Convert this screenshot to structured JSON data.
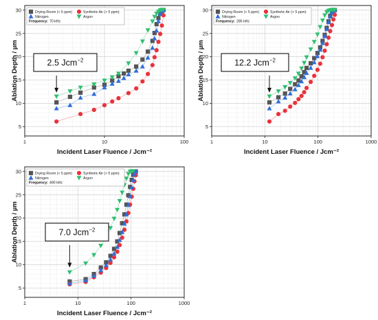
{
  "chart_data": [
    {
      "type": "scatter",
      "title": "",
      "xlabel": "Incident Laser Fluence / Jcm⁻²",
      "ylabel": "Ablation Depth / µm",
      "x_scale": "log",
      "xlim": [
        1,
        100
      ],
      "ylim": [
        3,
        31
      ],
      "x_ticks": [
        "1",
        "10",
        "100"
      ],
      "y_ticks": [
        "5",
        "10",
        "15",
        "20",
        "25",
        "30"
      ],
      "grid": true,
      "legend_position": "top-left",
      "frequency_label": "Frequency:",
      "frequency_value": "70 kHz",
      "callout": {
        "text": "2.5 Jcm",
        "superscript": "−2",
        "arrow_x": 2.5,
        "arrow_y": 12.3
      },
      "series": [
        {
          "name": "Drying Room (< 5 ppm)",
          "marker": "square",
          "color": "#555555",
          "x": [
            2.5,
            3.7,
            5.0,
            7.4,
            10.0,
            12.5,
            15.0,
            17.5,
            20.0,
            25.0,
            30.0,
            35.0,
            40.0,
            42.5,
            45.0,
            47.5,
            50.0,
            52.5,
            55.0
          ],
          "y": [
            10.2,
            11.4,
            12.3,
            13.4,
            14.0,
            14.9,
            15.8,
            16.4,
            17.0,
            17.9,
            19.4,
            21.1,
            23.4,
            25.1,
            27.0,
            28.3,
            29.2,
            29.8,
            30.0
          ]
        },
        {
          "name": "Synthetic Air (> 5 ppm)",
          "marker": "circle",
          "color": "#e8333c",
          "x": [
            2.5,
            5.0,
            7.4,
            10.0,
            12.5,
            15.0,
            20.0,
            25.0,
            30.0,
            35.0,
            40.0,
            42.5,
            45.0,
            47.5,
            50.0,
            52.5,
            55.0
          ],
          "y": [
            6.1,
            7.7,
            8.6,
            9.6,
            10.4,
            11.1,
            12.2,
            13.2,
            14.7,
            16.3,
            18.2,
            19.9,
            21.4,
            23.2,
            24.9,
            26.7,
            28.9
          ]
        },
        {
          "name": "Nitrogen",
          "marker": "triangle-up",
          "color": "#2f6fd6",
          "x": [
            2.5,
            3.7,
            5.0,
            7.4,
            10.0,
            12.5,
            15.0,
            17.5,
            20.0,
            25.0,
            30.0,
            35.0,
            40.0,
            42.5,
            45.0,
            47.5,
            50.0,
            52.5,
            55.0
          ],
          "y": [
            8.9,
            9.6,
            11.2,
            12.0,
            13.4,
            14.2,
            14.8,
            15.4,
            16.2,
            17.0,
            17.9,
            19.8,
            21.9,
            23.9,
            25.6,
            27.6,
            29.2,
            29.8,
            30.0
          ]
        },
        {
          "name": "Argon",
          "marker": "triangle-down",
          "color": "#2fbf71",
          "x": [
            2.5,
            3.7,
            5.0,
            7.4,
            10.0,
            12.5,
            15.0,
            20.0,
            25.0,
            30.0,
            35.0,
            40.0,
            42.5,
            45.0,
            47.5,
            50.0,
            52.5,
            55.0
          ],
          "y": [
            11.5,
            12.6,
            13.4,
            14.1,
            14.9,
            15.6,
            16.4,
            18.6,
            20.8,
            23.3,
            25.7,
            27.6,
            28.6,
            29.3,
            29.7,
            30.0,
            30.1,
            30.1
          ]
        }
      ]
    },
    {
      "type": "scatter",
      "title": "",
      "xlabel": "Incident Laser Fluence / Jcm⁻²",
      "ylabel": "Ablation Depth / µm",
      "x_scale": "log",
      "xlim": [
        1,
        1000
      ],
      "ylim": [
        3,
        31
      ],
      "x_ticks": [
        "1",
        "10",
        "100",
        "1000"
      ],
      "y_ticks": [
        "5",
        "10",
        "15",
        "20",
        "25",
        "30"
      ],
      "grid": true,
      "legend_position": "top-left",
      "frequency_label": "Frequency:",
      "frequency_value": "285 kHz",
      "callout": {
        "text": "12.2 Jcm",
        "superscript": "−2",
        "arrow_x": 12.2,
        "arrow_y": 12.3
      },
      "series": [
        {
          "name": "Drying Room (< 5 ppm)",
          "marker": "square",
          "color": "#555555",
          "x": [
            12.2,
            18,
            24,
            30,
            37,
            43,
            49,
            55,
            61,
            73,
            85,
            98,
            110,
            122,
            134,
            146,
            158,
            170,
            183,
            195,
            207
          ],
          "y": [
            10.2,
            11.3,
            12.1,
            13.1,
            14.1,
            14.9,
            15.8,
            16.7,
            17.6,
            18.6,
            19.7,
            20.8,
            22.0,
            23.4,
            24.7,
            26.2,
            27.6,
            28.8,
            29.6,
            29.9,
            30.0
          ]
        },
        {
          "name": "Synthetic Air (> 5 ppm)",
          "marker": "circle",
          "color": "#e8333c",
          "x": [
            12.2,
            18,
            24,
            30,
            37,
            43,
            49,
            55,
            61,
            73,
            85,
            98,
            110,
            122,
            134,
            146,
            158,
            170,
            183,
            195,
            207
          ],
          "y": [
            6.1,
            7.7,
            8.4,
            9.3,
            10.1,
            10.9,
            11.6,
            12.4,
            13.3,
            14.6,
            15.9,
            17.2,
            18.5,
            19.9,
            21.3,
            22.7,
            24.1,
            25.5,
            26.8,
            28.0,
            29.0
          ]
        },
        {
          "name": "Nitrogen",
          "marker": "triangle-up",
          "color": "#2f6fd6",
          "x": [
            12.2,
            18,
            24,
            30,
            37,
            43,
            49,
            55,
            61,
            73,
            85,
            98,
            110,
            122,
            134,
            146,
            158,
            170,
            183,
            195,
            207
          ],
          "y": [
            8.9,
            10.4,
            11.2,
            12.1,
            13.0,
            13.9,
            14.7,
            15.6,
            16.5,
            17.6,
            18.8,
            20.1,
            21.5,
            22.9,
            24.4,
            25.9,
            27.4,
            28.6,
            29.5,
            29.9,
            30.0
          ]
        },
        {
          "name": "Argon",
          "marker": "triangle-down",
          "color": "#2fbf71",
          "x": [
            12.2,
            18,
            24,
            30,
            37,
            43,
            49,
            55,
            61,
            73,
            85,
            98,
            110,
            122,
            134,
            146,
            158,
            170,
            183,
            195,
            207
          ],
          "y": [
            11.5,
            12.6,
            13.5,
            14.4,
            15.4,
            16.4,
            17.5,
            18.7,
            19.9,
            21.6,
            23.2,
            24.8,
            26.4,
            27.8,
            28.9,
            29.6,
            29.9,
            30.0,
            30.1,
            30.1,
            30.1
          ]
        }
      ]
    },
    {
      "type": "scatter",
      "title": "",
      "xlabel": "Incident Laser Fluence / Jcm⁻²",
      "ylabel": "Ablation Depth / µm",
      "x_scale": "log",
      "xlim": [
        1,
        1000
      ],
      "ylim": [
        3,
        31
      ],
      "x_ticks": [
        "1",
        "10",
        "100",
        "1000"
      ],
      "y_ticks": [
        "5",
        "10",
        "15",
        "20",
        "25",
        "30"
      ],
      "grid": true,
      "legend_position": "top-left",
      "frequency_label": "Frequency:",
      "frequency_value": "490 kHz",
      "callout": {
        "text": "7.0 Jcm",
        "superscript": "−2",
        "arrow_x": 7.0,
        "arrow_y": 9.4
      },
      "series": [
        {
          "name": "Drying Room (< 5 ppm)",
          "marker": "square",
          "color": "#555555",
          "x": [
            7,
            14,
            20,
            27,
            34,
            41,
            48,
            55,
            61,
            68,
            75,
            82,
            89,
            96,
            103,
            110,
            116,
            123
          ],
          "y": [
            6.4,
            6.9,
            8.0,
            9.4,
            10.5,
            11.9,
            13.4,
            15.0,
            16.8,
            18.9,
            20.8,
            22.9,
            24.9,
            26.7,
            28.2,
            29.3,
            29.8,
            30.0
          ]
        },
        {
          "name": "Synthetic Air (> 5 ppm)",
          "marker": "circle",
          "color": "#e8333c",
          "x": [
            7,
            14,
            20,
            27,
            34,
            41,
            48,
            55,
            61,
            68,
            75,
            82,
            89,
            96,
            103,
            110,
            116,
            123
          ],
          "y": [
            5.8,
            6.3,
            7.3,
            8.3,
            9.3,
            10.4,
            11.6,
            12.8,
            14.2,
            15.8,
            17.5,
            19.3,
            21.1,
            22.9,
            24.6,
            26.3,
            27.9,
            29.2
          ]
        },
        {
          "name": "Nitrogen",
          "marker": "triangle-up",
          "color": "#2f6fd6",
          "x": [
            7,
            14,
            20,
            27,
            34,
            41,
            48,
            55,
            61,
            68,
            75,
            82,
            89,
            96,
            103,
            110,
            116,
            123
          ],
          "y": [
            6.0,
            6.6,
            7.6,
            8.8,
            9.9,
            11.1,
            12.4,
            13.8,
            15.3,
            17.0,
            18.8,
            20.8,
            22.8,
            24.7,
            26.6,
            28.2,
            29.4,
            30.0
          ]
        },
        {
          "name": "Argon",
          "marker": "triangle-down",
          "color": "#2fbf71",
          "x": [
            7,
            14,
            20,
            27,
            34,
            41,
            48,
            55,
            61,
            68,
            75,
            82,
            89,
            96,
            103,
            110
          ],
          "y": [
            8.4,
            10.3,
            12.1,
            14.1,
            16.0,
            17.9,
            19.9,
            21.8,
            23.7,
            25.5,
            27.1,
            28.5,
            29.5,
            30.0,
            30.1,
            30.1
          ]
        }
      ]
    }
  ]
}
